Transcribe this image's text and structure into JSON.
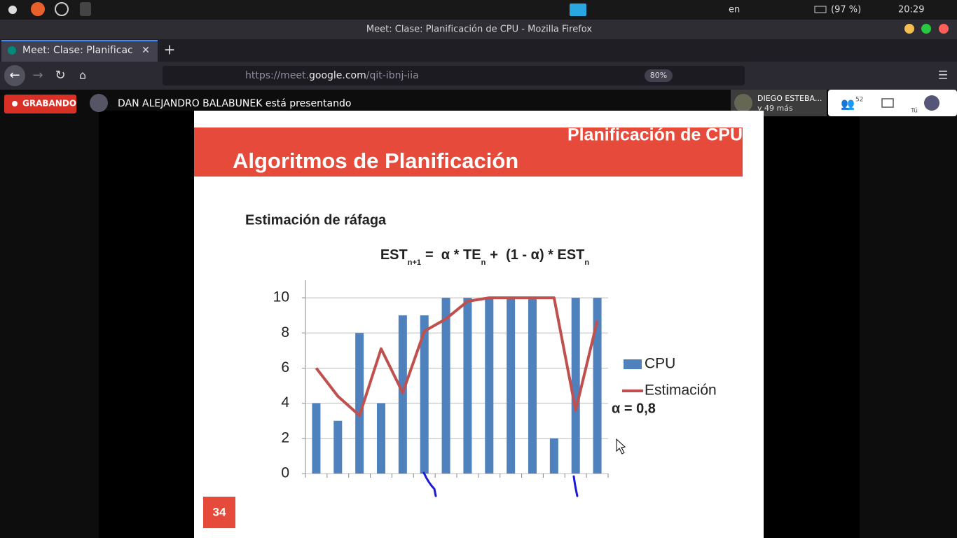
{
  "system_bar": {
    "keyboard": "en",
    "battery": "(97 %)",
    "time": "20:29"
  },
  "window_title": "Meet: Clase: Planificación de CPU - Mozilla Firefox",
  "tab": {
    "title": "Meet: Clase: Planificac"
  },
  "url": {
    "prefix": "https://meet.",
    "domain": "google.com",
    "path": "/qit-ibnj-iia",
    "zoom": "80%"
  },
  "meet": {
    "recording": "GRABANDO",
    "presenting": "DAN ALEJANDRO BALABUNEK está presentando",
    "participant": "DIEGO ESTEBA...",
    "more": "y 49 más",
    "count": "52",
    "you": "Tú"
  },
  "slide": {
    "header": "Planificación de CPU",
    "title": "Algoritmos de Planificación",
    "subtitle": "Estimación de ráfaga",
    "formula": [
      "EST",
      "n+1",
      "=  α * TE",
      "n",
      "+  (1 - α) * EST",
      "n"
    ],
    "alpha": "α = 0,8",
    "page": "34"
  },
  "chart_data": {
    "type": "bar",
    "categories": [
      null,
      null,
      null,
      null,
      null,
      null,
      null,
      null,
      null,
      null,
      null,
      null,
      null,
      null
    ],
    "series": [
      {
        "name": "CPU",
        "type": "bar",
        "color": "#4f81bd",
        "values": [
          4,
          3,
          8,
          4,
          9,
          9,
          10,
          10,
          10,
          10,
          10,
          2,
          10,
          10
        ]
      },
      {
        "name": "Estimación",
        "type": "line",
        "color": "#c0504d",
        "values": [
          6,
          4.4,
          3.3,
          7.1,
          4.6,
          8.1,
          8.8,
          9.8,
          10,
          10,
          10,
          10,
          3.6,
          8.7
        ]
      }
    ],
    "ylim": [
      0,
      11
    ],
    "yticks": [
      0,
      2,
      4,
      6,
      8,
      10
    ],
    "grid": true
  }
}
